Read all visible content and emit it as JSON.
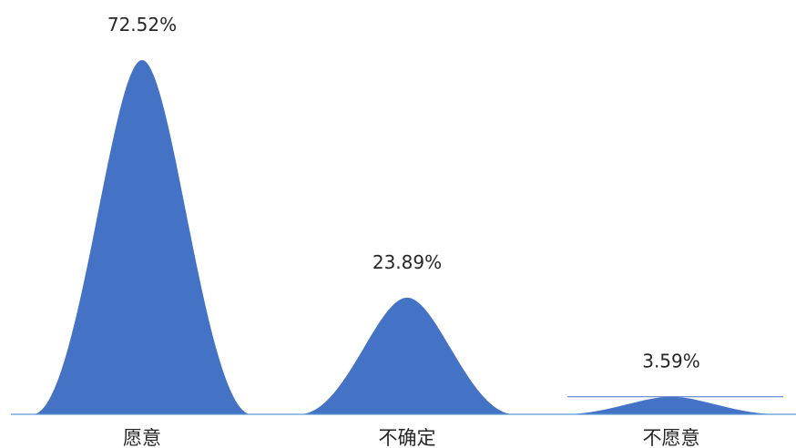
{
  "chart_data": {
    "type": "area",
    "categories": [
      "愿意",
      "不确定",
      "不愿意"
    ],
    "values": [
      72.52,
      23.89,
      3.59
    ],
    "data_labels": [
      "72.52%",
      "23.89%",
      "3.59%"
    ],
    "value_unit": "%",
    "title": "",
    "xlabel": "",
    "ylabel": "",
    "ylim": [
      0,
      72.52
    ],
    "grid": false,
    "legend": "none",
    "colors": {
      "fill": "#4472C4",
      "axis": "#5B9BD5",
      "text": "#262626",
      "background": "#FFFFFF"
    }
  }
}
